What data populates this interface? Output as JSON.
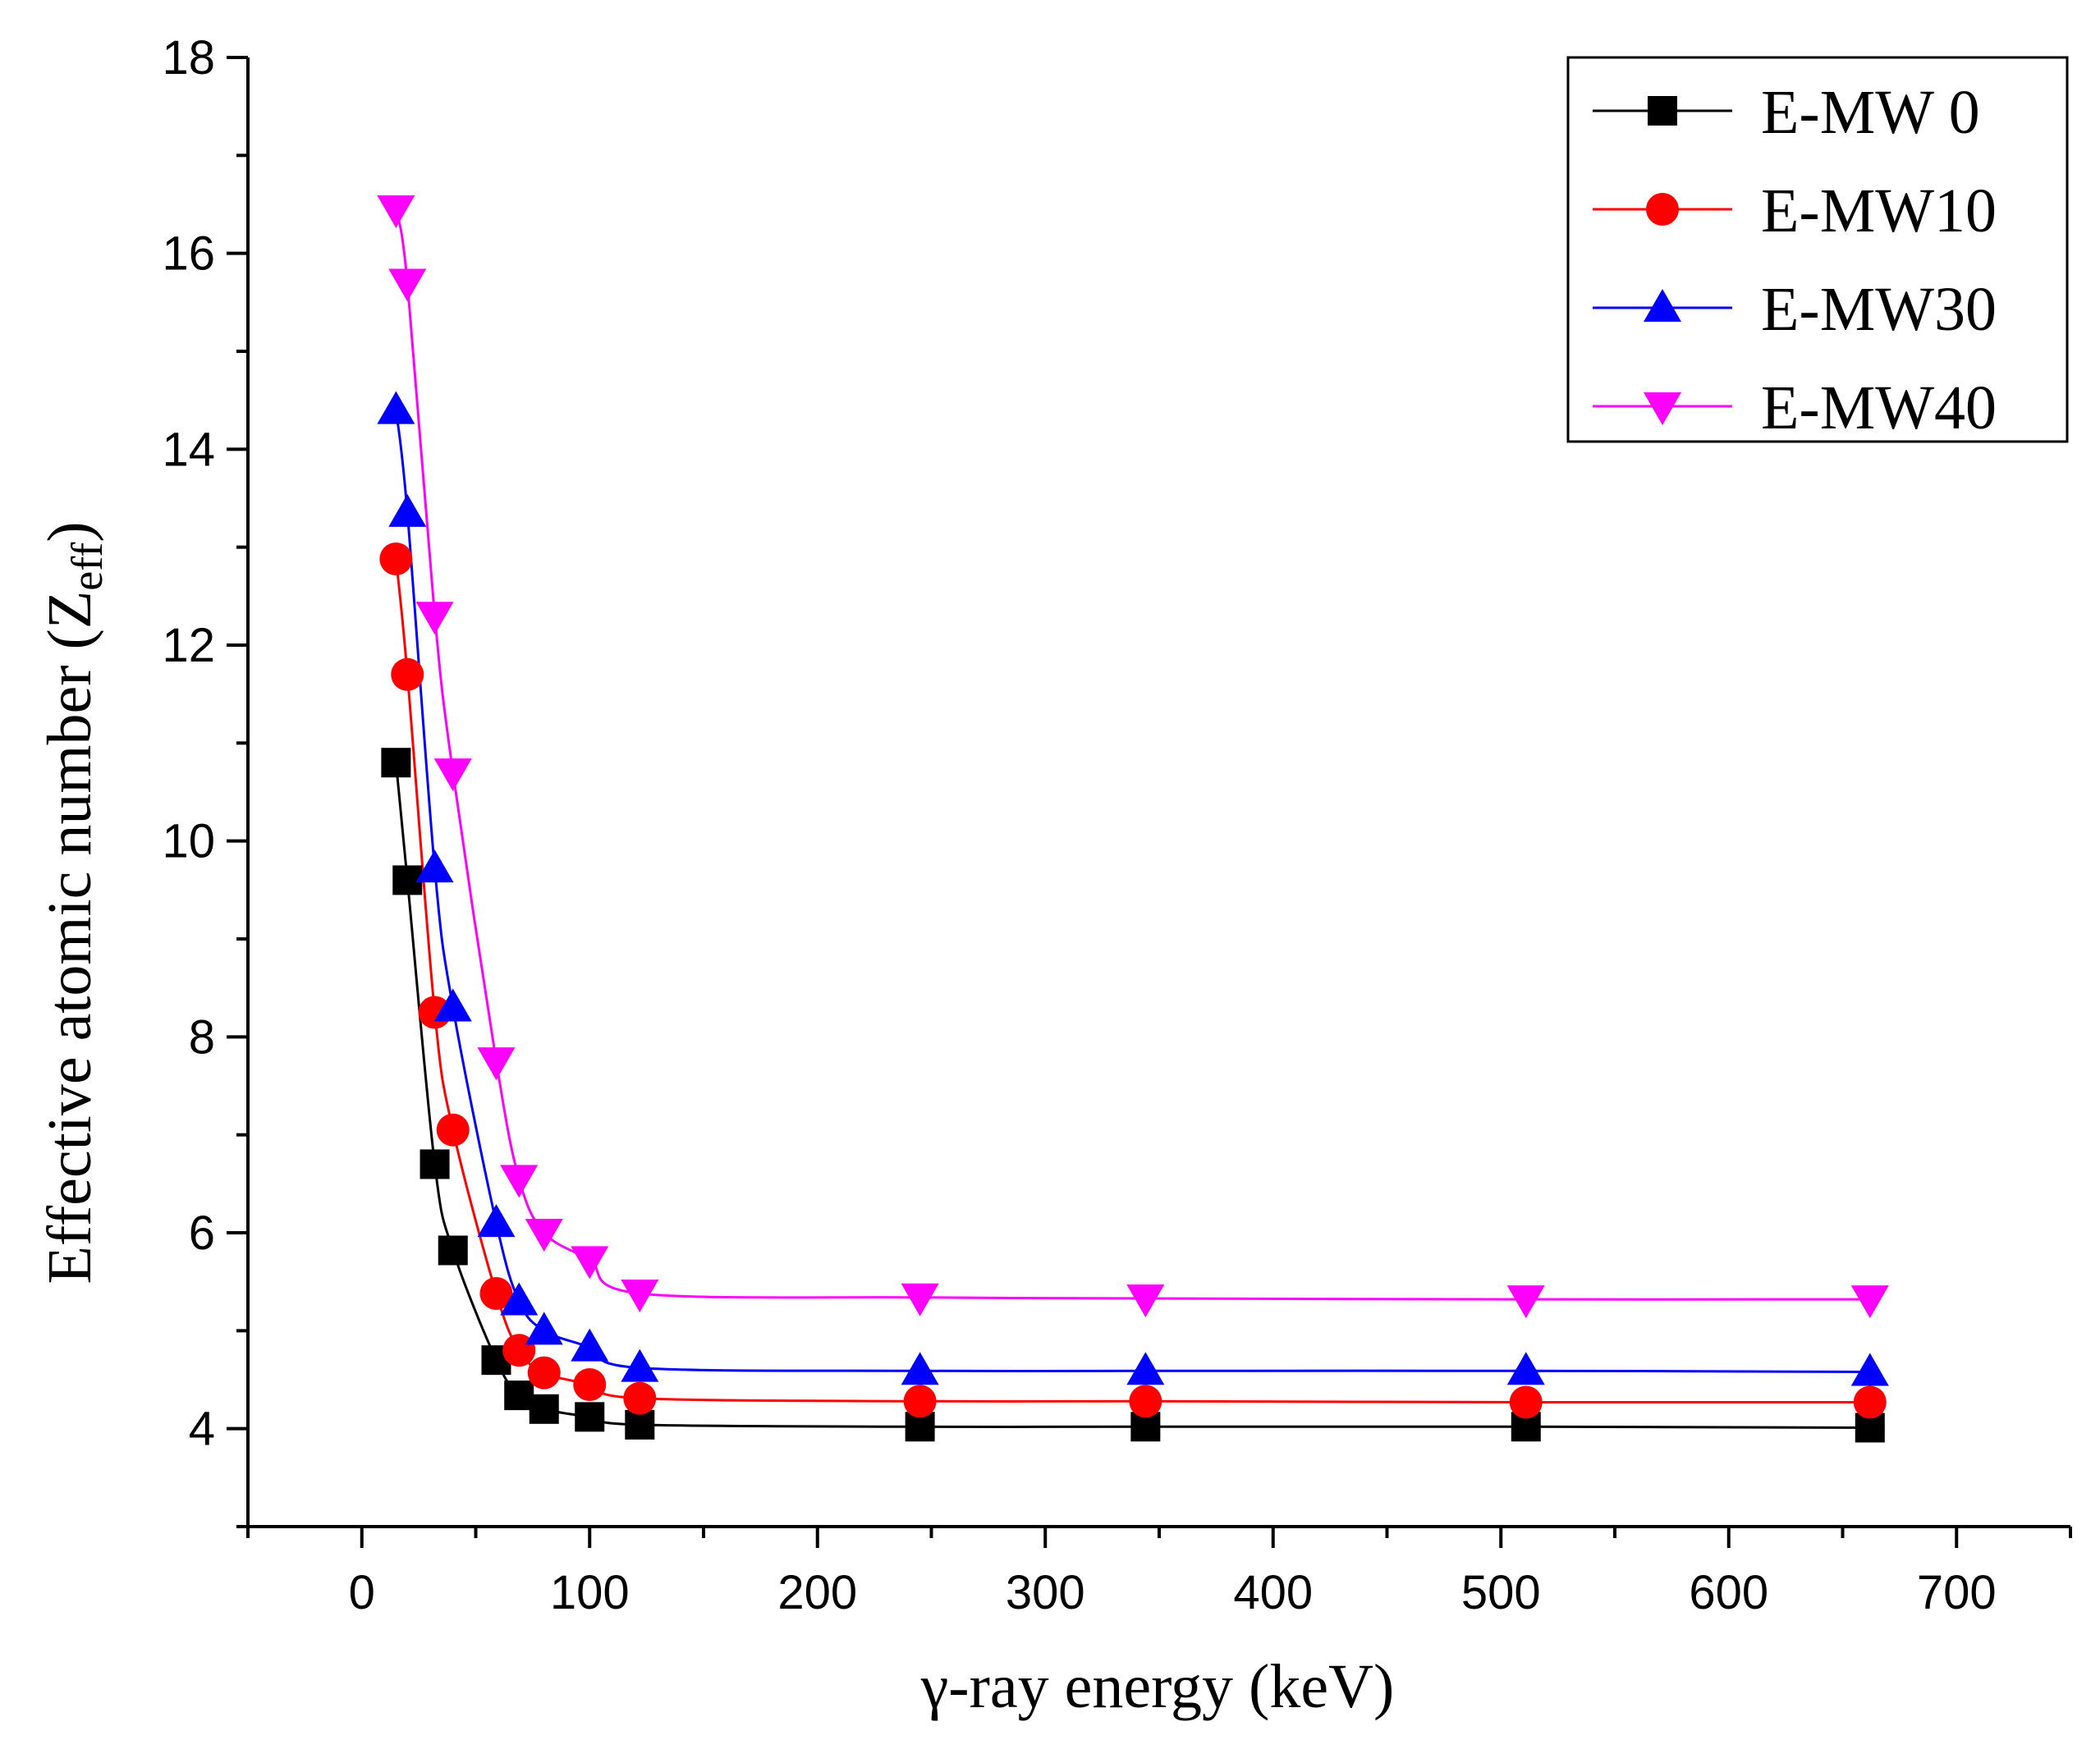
{
  "chart_data": {
    "type": "line",
    "xlabel": "γ-ray energy (keV)",
    "ylabel": {
      "main": "Effective atomic number (Z",
      "sub": "eff",
      "close": ")"
    },
    "xlim": [
      -50,
      750
    ],
    "ylim": [
      3,
      18
    ],
    "xticks": [
      0,
      100,
      200,
      300,
      400,
      500,
      600,
      700
    ],
    "yticks": [
      4,
      6,
      8,
      10,
      12,
      14,
      16,
      18
    ],
    "grid": false,
    "legend_position": "top-right",
    "x": [
      15,
      20,
      32,
      40,
      59,
      69,
      80,
      100,
      122,
      245,
      344,
      511,
      662
    ],
    "series": [
      {
        "name": "E-MW 0",
        "color": "#000000",
        "marker": "square",
        "values": [
          10.8,
          9.6,
          6.7,
          5.82,
          4.7,
          4.34,
          4.2,
          4.12,
          4.04,
          4.02,
          4.02,
          4.02,
          4.01
        ]
      },
      {
        "name": "E-MW10",
        "color": "#ff0000",
        "marker": "circle",
        "values": [
          12.88,
          11.7,
          8.25,
          7.05,
          5.38,
          4.8,
          4.57,
          4.45,
          4.31,
          4.28,
          4.28,
          4.27,
          4.27
        ]
      },
      {
        "name": "E-MW30",
        "color": "#0000ff",
        "marker": "triangle-up",
        "values": [
          14.4,
          13.35,
          9.72,
          8.3,
          6.1,
          5.3,
          5.0,
          4.83,
          4.62,
          4.59,
          4.59,
          4.59,
          4.58
        ]
      },
      {
        "name": "E-MW40",
        "color": "#ff00ff",
        "marker": "triangle-down",
        "values": [
          16.45,
          15.7,
          12.3,
          10.7,
          7.75,
          6.55,
          6.0,
          5.72,
          5.38,
          5.34,
          5.33,
          5.32,
          5.32
        ]
      }
    ]
  }
}
